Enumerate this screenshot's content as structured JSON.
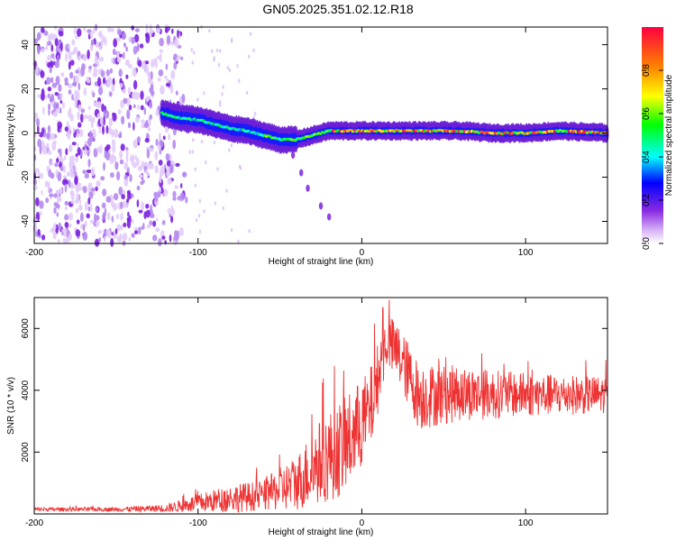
{
  "title": "GN05.2025.351.02.12.R18",
  "chart_data": [
    {
      "type": "heatmap",
      "xlabel": "Height of straight line (km)",
      "ylabel": "Frequency (Hz)",
      "xlim": [
        -200,
        150
      ],
      "ylim": [
        -50,
        48
      ],
      "xticks": [
        -200,
        -100,
        0,
        100
      ],
      "yticks": [
        -40,
        -20,
        0,
        20,
        40
      ],
      "colorbar": {
        "label": "Normalized spectral amplitude",
        "range": [
          0,
          1
        ],
        "ticks": [
          0.0,
          0.2,
          0.4,
          0.6,
          0.8
        ],
        "tick_labels": [
          "0.0",
          "0.2",
          "0.4",
          "0.6",
          "0.8"
        ],
        "colors": [
          "#ffffff",
          "#d8b4f8",
          "#8a2be2",
          "#0000ff",
          "#00ffff",
          "#00ff00",
          "#ffff00",
          "#ff8000",
          "#ff0040"
        ]
      },
      "noise_region_x": [
        -200,
        -105
      ],
      "ridge": [
        {
          "x": -122,
          "f": 9
        },
        {
          "x": -112,
          "f": 7
        },
        {
          "x": -100,
          "f": 6
        },
        {
          "x": -90,
          "f": 4
        },
        {
          "x": -80,
          "f": 2
        },
        {
          "x": -70,
          "f": 1
        },
        {
          "x": -60,
          "f": -1
        },
        {
          "x": -50,
          "f": -3
        },
        {
          "x": -40,
          "f": -3
        },
        {
          "x": -30,
          "f": -1
        },
        {
          "x": -20,
          "f": 1
        },
        {
          "x": -10,
          "f": 1
        },
        {
          "x": 0,
          "f": 1
        },
        {
          "x": 20,
          "f": 1
        },
        {
          "x": 40,
          "f": 1
        },
        {
          "x": 60,
          "f": 1
        },
        {
          "x": 80,
          "f": 0
        },
        {
          "x": 100,
          "f": 0
        },
        {
          "x": 120,
          "f": 1
        },
        {
          "x": 150,
          "f": 0
        }
      ],
      "branch": [
        {
          "x": -42,
          "f": -10
        },
        {
          "x": -37,
          "f": -18
        },
        {
          "x": -33,
          "f": -25
        },
        {
          "x": -25,
          "f": -33
        },
        {
          "x": -20,
          "f": -38
        }
      ]
    },
    {
      "type": "line",
      "xlabel": "Height of straight line (km)",
      "ylabel": "SNR (10 * v/v)",
      "xlim": [
        -200,
        150
      ],
      "ylim": [
        0,
        7000
      ],
      "xticks": [
        -200,
        -100,
        0,
        100
      ],
      "yticks": [
        2000,
        4000,
        6000
      ],
      "color": "#ee3333",
      "series": [
        {
          "name": "SNR",
          "envelope": [
            {
              "x": -200,
              "mean": 150,
              "spread": 60
            },
            {
              "x": -150,
              "mean": 150,
              "spread": 70
            },
            {
              "x": -120,
              "mean": 180,
              "spread": 120
            },
            {
              "x": -100,
              "mean": 350,
              "spread": 300
            },
            {
              "x": -80,
              "mean": 500,
              "spread": 450
            },
            {
              "x": -60,
              "mean": 600,
              "spread": 500
            },
            {
              "x": -40,
              "mean": 1000,
              "spread": 900
            },
            {
              "x": -25,
              "mean": 1700,
              "spread": 1400
            },
            {
              "x": -10,
              "mean": 2200,
              "spread": 1600
            },
            {
              "x": 5,
              "mean": 3300,
              "spread": 1400
            },
            {
              "x": 15,
              "mean": 5600,
              "spread": 900
            },
            {
              "x": 22,
              "mean": 5200,
              "spread": 1000
            },
            {
              "x": 35,
              "mean": 3800,
              "spread": 1100
            },
            {
              "x": 60,
              "mean": 3900,
              "spread": 900
            },
            {
              "x": 100,
              "mean": 3850,
              "spread": 700
            },
            {
              "x": 150,
              "mean": 3850,
              "spread": 600
            }
          ]
        }
      ]
    }
  ]
}
